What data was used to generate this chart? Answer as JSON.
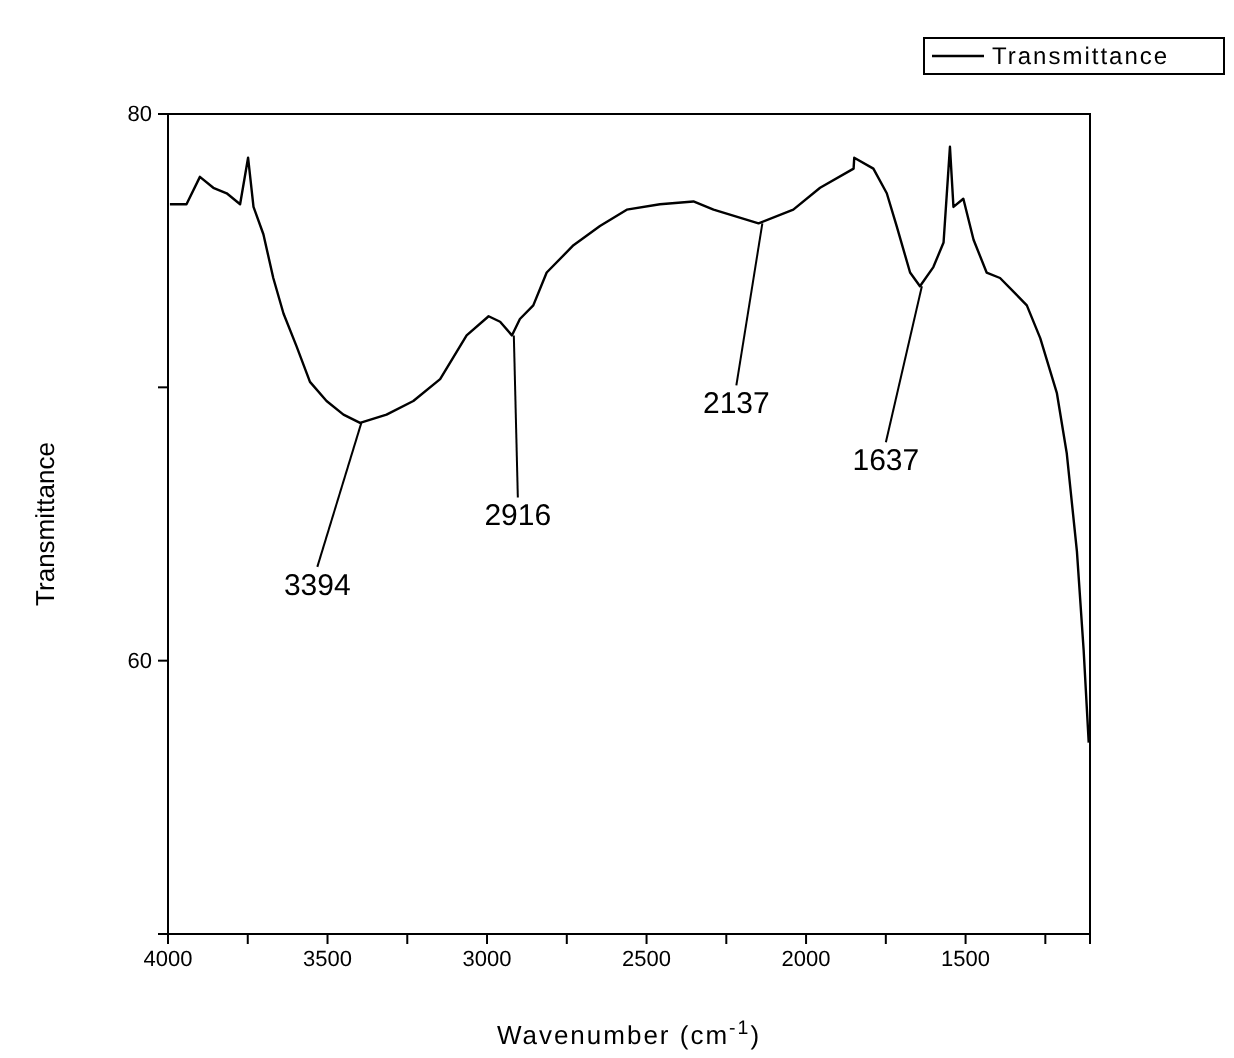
{
  "chart_data": {
    "type": "line",
    "xlabel": "Wavenumber (cm$^{-1}$)",
    "ylabel": "Transmittance",
    "xlim": [
      4000,
      1110
    ],
    "xticks": [
      4000,
      {
        "value": 3750,
        "label": null
      },
      3500,
      {
        "value": 3250,
        "label": null
      },
      3000,
      {
        "value": 2750,
        "label": null
      },
      2500,
      {
        "value": 2250,
        "label": null
      },
      2000,
      {
        "value": 1750,
        "label": null
      },
      1500,
      {
        "value": 1250,
        "label": null
      }
    ],
    "ylim": [
      50,
      80
    ],
    "yticks": [
      60,
      {
        "value": 70,
        "label": null
      },
      80
    ],
    "legend": "top right",
    "marker": "none",
    "line_style": "solid",
    "x": [
      3994,
      3942,
      3900,
      3858,
      3816,
      3774,
      3749,
      3732,
      3701,
      3670,
      3638,
      3597,
      3555,
      3503,
      3450,
      3398,
      3315,
      3231,
      3147,
      3064,
      2995,
      2959,
      2922,
      2897,
      2855,
      2813,
      2729,
      2646,
      2562,
      2458,
      2353,
      2290,
      2149,
      2040,
      1956,
      1851,
      1849,
      1789,
      1747,
      1716,
      1674,
      1643,
      1601,
      1569,
      1549,
      1538,
      1507,
      1475,
      1434,
      1392,
      1308,
      1266,
      1214,
      1183,
      1151,
      1130,
      1114
    ],
    "series": [
      {
        "name": "Transmittance",
        "color": "#000000",
        "values": [
          76.7,
          76.7,
          77.7,
          77.3,
          77.1,
          76.7,
          78.4,
          76.6,
          75.6,
          74.0,
          72.7,
          71.5,
          70.2,
          69.5,
          69.0,
          68.7,
          69.0,
          69.5,
          70.3,
          71.9,
          72.6,
          72.4,
          71.9,
          72.5,
          73.0,
          74.2,
          75.2,
          75.9,
          76.5,
          76.7,
          76.8,
          76.5,
          76.0,
          76.5,
          77.3,
          78.0,
          78.4,
          78.0,
          77.1,
          75.9,
          74.2,
          73.7,
          74.4,
          75.3,
          78.8,
          76.6,
          76.9,
          75.4,
          74.2,
          74.0,
          73.0,
          71.8,
          69.8,
          67.6,
          64.0,
          60.4,
          57.0
        ]
      }
    ],
    "annotations": [
      {
        "text": "3394",
        "x": 3394,
        "y": 68.7
      },
      {
        "text": "2916",
        "x": 2916,
        "y": 71.9
      },
      {
        "text": "2137",
        "x": 2137,
        "y": 76.0
      },
      {
        "text": "1637",
        "x": 1637,
        "y": 73.7
      }
    ]
  }
}
